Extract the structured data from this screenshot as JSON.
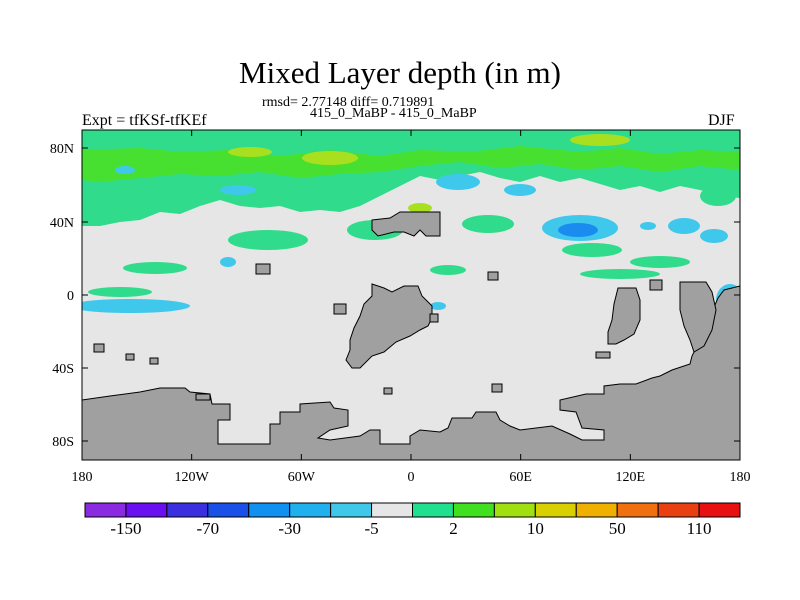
{
  "figure": {
    "title": "Mixed Layer depth (in m)",
    "stats_line": "rmsd= 2.77148 diff= 0.719891",
    "cases_line": "415_0_MaBP - 415_0_MaBP",
    "left_label": "Expt = tfKSf-tfKEf",
    "right_label": "DJF"
  },
  "axes": {
    "lon_ticks": [
      "180",
      "120W",
      "60W",
      "0",
      "60E",
      "120E",
      "180"
    ],
    "lat_ticks": [
      "80N",
      "40N",
      "0",
      "40S",
      "80S"
    ]
  },
  "colorbar": {
    "colors": [
      "#8a2be2",
      "#6a10f0",
      "#3a30e0",
      "#1a50e8",
      "#1090f0",
      "#20b0ee",
      "#40c8e8",
      "#e6e6e6",
      "#20e090",
      "#40e020",
      "#a0e010",
      "#d8d000",
      "#f0b000",
      "#f07010",
      "#e84010",
      "#e81010"
    ],
    "labels": [
      "-150",
      "-70",
      "-30",
      "-5",
      "2",
      "10",
      "50",
      "110"
    ]
  },
  "map": {
    "land_color": "#a0a0a0",
    "neutral_color": "#e6e6e6",
    "green": "#30dc8c",
    "bright_green": "#48e030",
    "yellow_green": "#a8e020",
    "cyan": "#40c8ec",
    "blue": "#1a8cf0"
  }
}
